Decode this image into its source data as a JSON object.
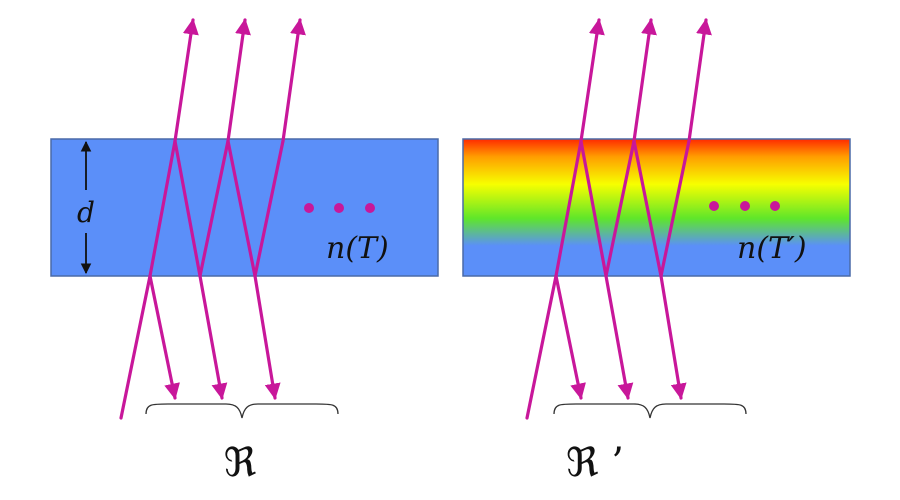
{
  "colors": {
    "slab_fill": "#5b8ff9",
    "slab_border": "#4a6aa8",
    "ray": "#c8179a",
    "text": "#111111",
    "gradient_stops": [
      "#ff2a00",
      "#ff9e00",
      "#f7ff00",
      "#5fe62a",
      "#5b8ff9"
    ]
  },
  "left_panel": {
    "thickness_label": "d",
    "index_label": "n(T)",
    "ellipsis": "• • •",
    "reflectance_label": "ℜ"
  },
  "right_panel": {
    "index_label": "n(T′)",
    "ellipsis": "• • •",
    "reflectance_label": "ℜ ’"
  }
}
